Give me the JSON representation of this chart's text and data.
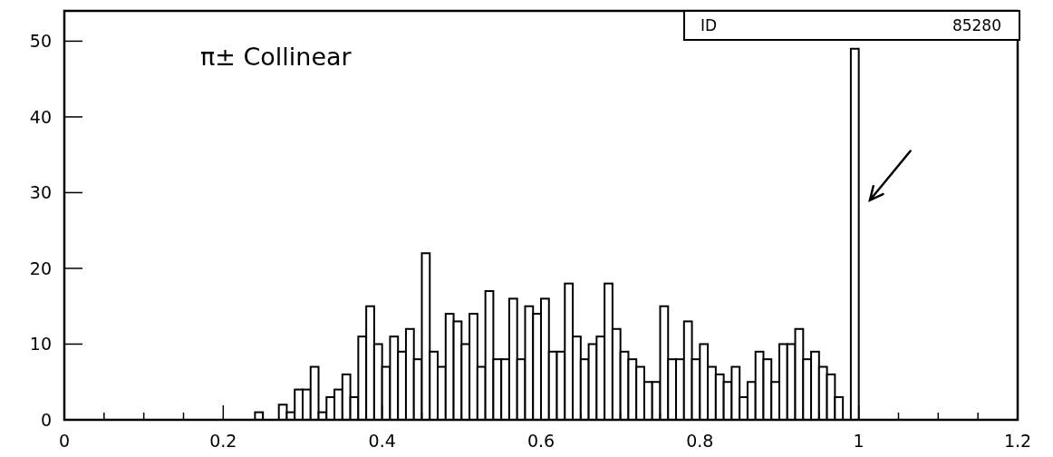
{
  "chart_data": {
    "type": "histogram",
    "title": "π± Collinear",
    "annotations": [
      "ID",
      "85280"
    ],
    "bins": [
      0.24,
      0.25,
      0.26,
      0.27,
      0.28,
      0.29,
      0.3,
      0.31,
      0.32,
      0.33,
      0.34,
      0.35,
      0.36,
      0.37,
      0.38,
      0.39,
      0.4,
      0.41,
      0.42,
      0.43,
      0.44,
      0.45,
      0.46,
      0.47,
      0.48,
      0.49,
      0.5,
      0.51,
      0.52,
      0.53,
      0.54,
      0.55,
      0.56,
      0.57,
      0.58,
      0.59,
      0.6,
      0.61,
      0.62,
      0.63,
      0.64,
      0.65,
      0.66,
      0.67,
      0.68,
      0.69,
      0.7,
      0.71,
      0.72,
      0.73,
      0.74,
      0.75,
      0.76,
      0.77,
      0.78,
      0.79,
      0.8,
      0.81,
      0.82,
      0.83,
      0.84,
      0.85,
      0.86,
      0.87,
      0.88,
      0.89,
      0.9,
      0.91,
      0.92,
      0.93,
      0.94,
      0.95,
      0.96,
      0.97,
      0.98,
      0.99,
      1.0
    ],
    "values": [
      1,
      0,
      0,
      2,
      1,
      4,
      4,
      7,
      1,
      3,
      4,
      6,
      3,
      11,
      15,
      10,
      7,
      11,
      9,
      12,
      8,
      22,
      9,
      7,
      14,
      13,
      10,
      14,
      7,
      17,
      8,
      8,
      16,
      8,
      15,
      14,
      16,
      9,
      9,
      18,
      11,
      8,
      10,
      11,
      18,
      12,
      9,
      8,
      7,
      5,
      5,
      15,
      8,
      8,
      13,
      8,
      10,
      7,
      6,
      5,
      7,
      3,
      5,
      9,
      8,
      5,
      10,
      10,
      12,
      8,
      9,
      7,
      6,
      3,
      0,
      49
    ],
    "color": "#000000",
    "xlim": [
      0,
      1.2
    ],
    "xticks": [
      0,
      {
        "value": 0.05,
        "label": null
      },
      {
        "value": 0.1,
        "label": null
      },
      {
        "value": 0.15,
        "label": null
      },
      0.2,
      {
        "value": 0.25,
        "label": null
      },
      {
        "value": 0.3,
        "label": null
      },
      {
        "value": 0.35,
        "label": null
      },
      0.4,
      {
        "value": 0.45,
        "label": null
      },
      {
        "value": 0.5,
        "label": null
      },
      {
        "value": 0.55,
        "label": null
      },
      0.6,
      {
        "value": 0.65,
        "label": null
      },
      {
        "value": 0.7,
        "label": null
      },
      {
        "value": 0.75,
        "label": null
      },
      0.8,
      {
        "value": 0.85,
        "label": null
      },
      {
        "value": 0.9,
        "label": null
      },
      {
        "value": 0.95,
        "label": null
      },
      1,
      {
        "value": 1.05,
        "label": null
      },
      {
        "value": 1.1,
        "label": null
      },
      {
        "value": 1.15,
        "label": null
      },
      1.2
    ],
    "ylim": [
      0,
      54
    ],
    "yticks": [
      0,
      10,
      20,
      30,
      40,
      50
    ]
  }
}
